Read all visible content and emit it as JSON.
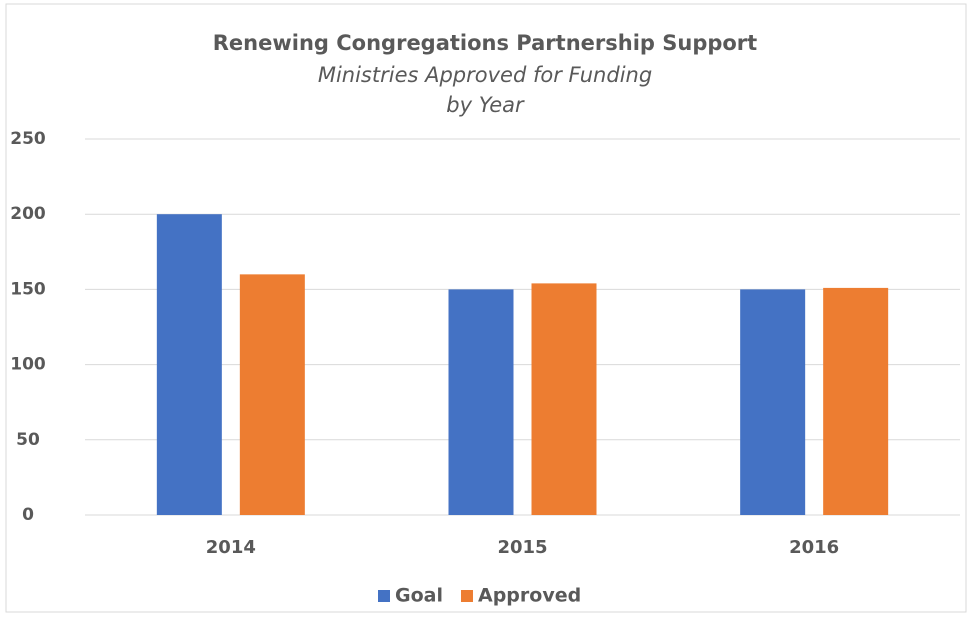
{
  "chart_data": {
    "type": "bar",
    "title": "Renewing Congregations Partnership Support",
    "subtitle": [
      "Ministries Approved for Funding",
      "by Year"
    ],
    "categories": [
      "2014",
      "2015",
      "2016"
    ],
    "series": [
      {
        "name": "Goal",
        "color": "#4472c4",
        "values": [
          200,
          150,
          150
        ]
      },
      {
        "name": "Approved",
        "color": "#ed7d31",
        "values": [
          160,
          154,
          151
        ]
      }
    ],
    "ylim": [
      0,
      250
    ],
    "yticks": [
      0,
      50,
      100,
      150,
      200,
      250
    ],
    "grid": true,
    "legend": "bottom"
  }
}
